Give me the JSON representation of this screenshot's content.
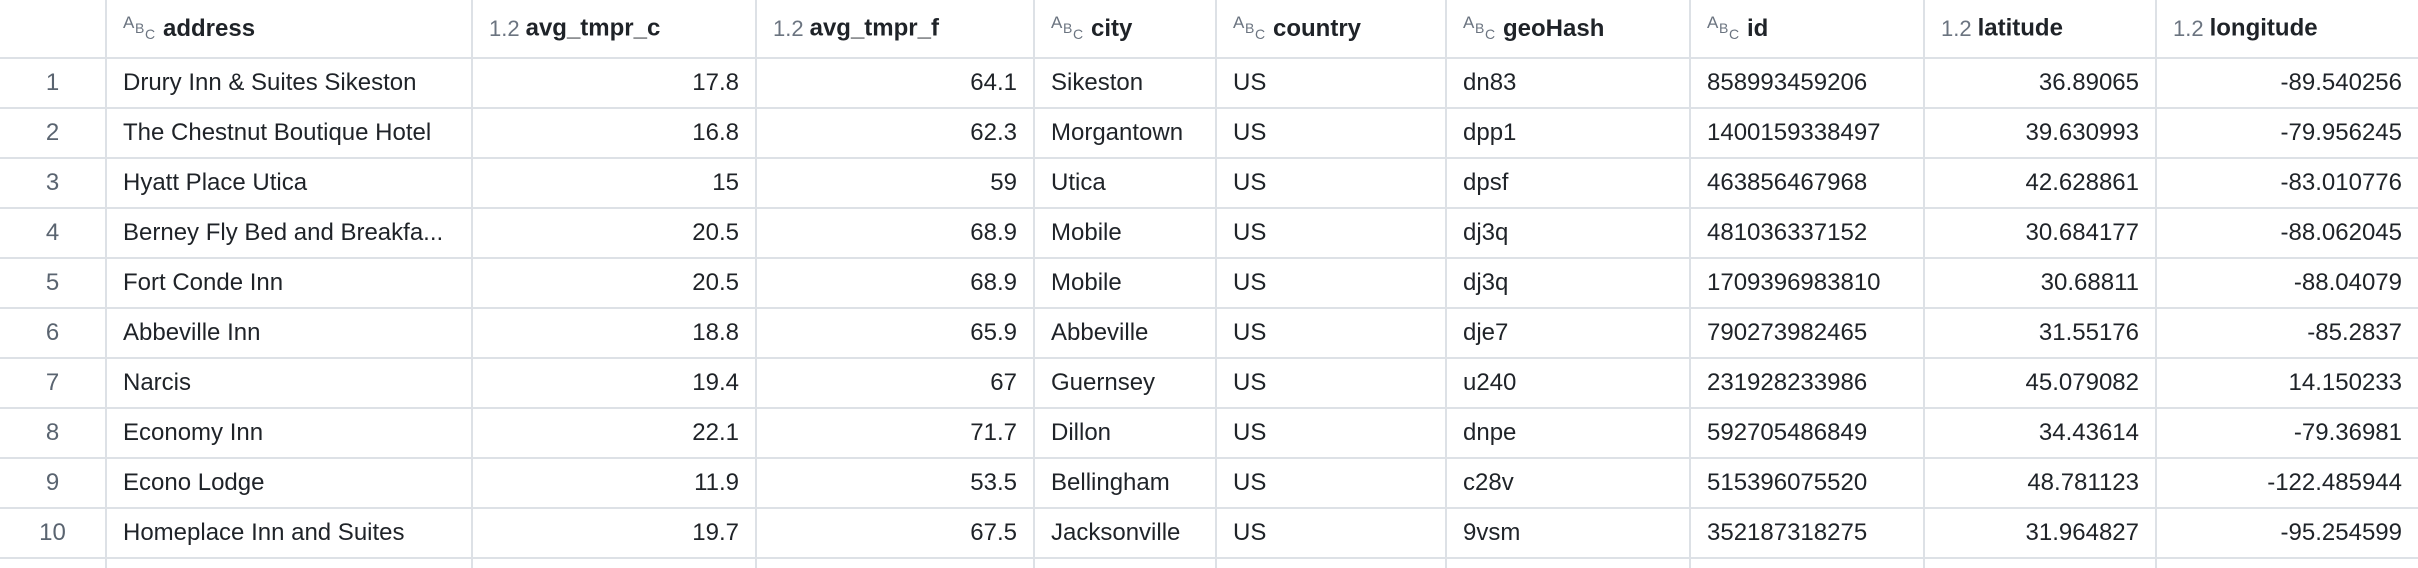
{
  "columns": [
    {
      "key": "address",
      "label": "address",
      "type_icon": "string-type-icon",
      "numeric": false
    },
    {
      "key": "avg_tmpr_c",
      "label": "avg_tmpr_c",
      "type_icon": "decimal-type-icon",
      "numeric": true
    },
    {
      "key": "avg_tmpr_f",
      "label": "avg_tmpr_f",
      "type_icon": "decimal-type-icon",
      "numeric": true
    },
    {
      "key": "city",
      "label": "city",
      "type_icon": "string-type-icon",
      "numeric": false
    },
    {
      "key": "country",
      "label": "country",
      "type_icon": "string-type-icon",
      "numeric": false
    },
    {
      "key": "geoHash",
      "label": "geoHash",
      "type_icon": "string-type-icon",
      "numeric": false
    },
    {
      "key": "id",
      "label": "id",
      "type_icon": "string-type-icon",
      "numeric": false
    },
    {
      "key": "latitude",
      "label": "latitude",
      "type_icon": "decimal-type-icon",
      "numeric": true
    },
    {
      "key": "longitude",
      "label": "longitude",
      "type_icon": "decimal-type-icon",
      "numeric": true
    }
  ],
  "type_icons": {
    "string": {
      "a": "A",
      "b": "B",
      "c": "C"
    },
    "decimal": "1.2"
  },
  "rows": [
    {
      "index": "1",
      "address": "Drury Inn & Suites Sikeston",
      "avg_tmpr_c": "17.8",
      "avg_tmpr_f": "64.1",
      "city": "Sikeston",
      "country": "US",
      "geoHash": "dn83",
      "id": "858993459206",
      "latitude": "36.89065",
      "longitude": "-89.540256"
    },
    {
      "index": "2",
      "address": "The Chestnut Boutique Hotel",
      "avg_tmpr_c": "16.8",
      "avg_tmpr_f": "62.3",
      "city": "Morgantown",
      "country": "US",
      "geoHash": "dpp1",
      "id": "1400159338497",
      "latitude": "39.630993",
      "longitude": "-79.956245"
    },
    {
      "index": "3",
      "address": "Hyatt Place Utica",
      "avg_tmpr_c": "15",
      "avg_tmpr_f": "59",
      "city": "Utica",
      "country": "US",
      "geoHash": "dpsf",
      "id": "463856467968",
      "latitude": "42.628861",
      "longitude": "-83.010776"
    },
    {
      "index": "4",
      "address": "Berney Fly Bed and Breakfa...",
      "avg_tmpr_c": "20.5",
      "avg_tmpr_f": "68.9",
      "city": "Mobile",
      "country": "US",
      "geoHash": "dj3q",
      "id": "481036337152",
      "latitude": "30.684177",
      "longitude": "-88.062045"
    },
    {
      "index": "5",
      "address": "Fort Conde Inn",
      "avg_tmpr_c": "20.5",
      "avg_tmpr_f": "68.9",
      "city": "Mobile",
      "country": "US",
      "geoHash": "dj3q",
      "id": "1709396983810",
      "latitude": "30.68811",
      "longitude": "-88.04079"
    },
    {
      "index": "6",
      "address": "Abbeville Inn",
      "avg_tmpr_c": "18.8",
      "avg_tmpr_f": "65.9",
      "city": "Abbeville",
      "country": "US",
      "geoHash": "dje7",
      "id": "790273982465",
      "latitude": "31.55176",
      "longitude": "-85.2837"
    },
    {
      "index": "7",
      "address": "Narcis",
      "avg_tmpr_c": "19.4",
      "avg_tmpr_f": "67",
      "city": "Guernsey",
      "country": "US",
      "geoHash": "u240",
      "id": "231928233986",
      "latitude": "45.079082",
      "longitude": "14.150233"
    },
    {
      "index": "8",
      "address": "Economy Inn",
      "avg_tmpr_c": "22.1",
      "avg_tmpr_f": "71.7",
      "city": "Dillon",
      "country": "US",
      "geoHash": "dnpe",
      "id": "592705486849",
      "latitude": "34.43614",
      "longitude": "-79.36981"
    },
    {
      "index": "9",
      "address": "Econo Lodge",
      "avg_tmpr_c": "11.9",
      "avg_tmpr_f": "53.5",
      "city": "Bellingham",
      "country": "US",
      "geoHash": "c28v",
      "id": "515396075520",
      "latitude": "48.781123",
      "longitude": "-122.485944"
    },
    {
      "index": "10",
      "address": "Homeplace Inn and Suites",
      "avg_tmpr_c": "19.7",
      "avg_tmpr_f": "67.5",
      "city": "Jacksonville",
      "country": "US",
      "geoHash": "9vsm",
      "id": "352187318275",
      "latitude": "31.964827",
      "longitude": "-95.254599"
    }
  ]
}
